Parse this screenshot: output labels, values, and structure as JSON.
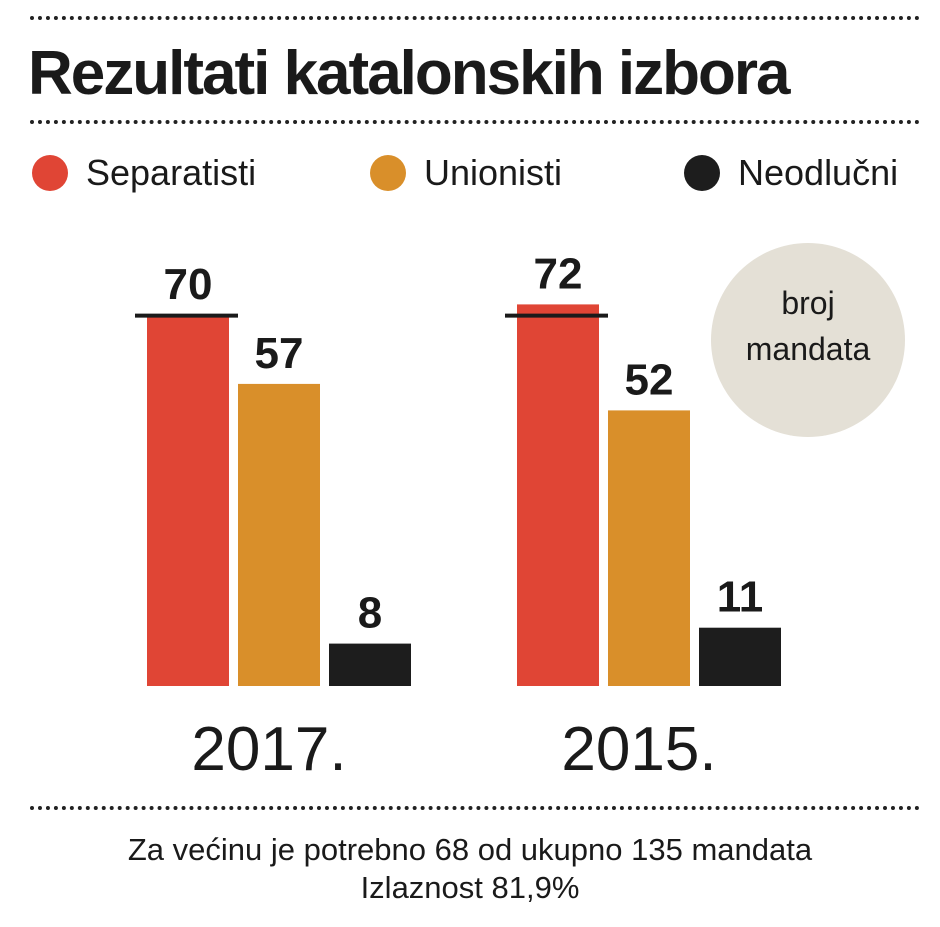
{
  "title": "Rezultati katalonskih izbora",
  "legend": [
    {
      "label": "Separatisti",
      "color": "#e04535"
    },
    {
      "label": "Unionisti",
      "color": "#d98f2a"
    },
    {
      "label": "Neodlučni",
      "color": "#1d1d1d"
    }
  ],
  "badge": {
    "line1": "broj",
    "line2": "mandata",
    "color": "#e4e0d6"
  },
  "footer": {
    "line1": "Za većinu je potrebno 68 od ukupno 135 mandata",
    "line2": "Izlaznost 81,9%"
  },
  "chart_data": {
    "type": "bar",
    "title": "Rezultati katalonskih izbora",
    "categories": [
      "2017.",
      "2015."
    ],
    "series": [
      {
        "name": "Separatisti",
        "values": [
          70,
          72
        ]
      },
      {
        "name": "Unionisti",
        "values": [
          57,
          52
        ]
      },
      {
        "name": "Neodlučni",
        "values": [
          8,
          11
        ]
      }
    ],
    "majority_line": 68,
    "ylabel": "broj mandata",
    "ylim": [
      0,
      75
    ],
    "grid": false,
    "legend_position": "top"
  }
}
